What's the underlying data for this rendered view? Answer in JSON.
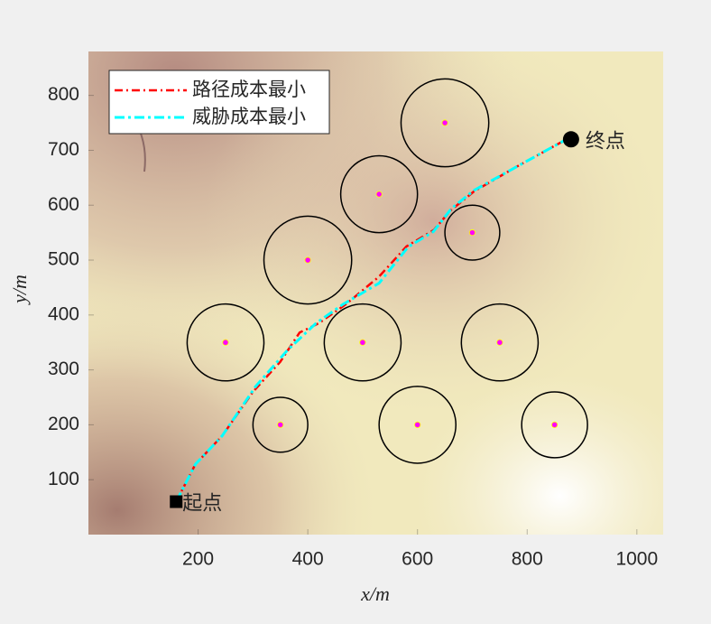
{
  "chart_data": {
    "type": "line",
    "xlabel": "x/m",
    "ylabel": "y/m",
    "xlim": [
      0,
      1048
    ],
    "ylim": [
      0,
      880
    ],
    "xticks": [
      200,
      400,
      600,
      800,
      1000
    ],
    "yticks": [
      100,
      200,
      300,
      400,
      500,
      600,
      700,
      800
    ],
    "legend": "upper left",
    "series": [
      {
        "name": "路径成本最小",
        "color": "#ff0000",
        "x": [
          160,
          195,
          244,
          300,
          350,
          385,
          420,
          470,
          530,
          580,
          630,
          660,
          703,
          777,
          879
        ],
        "y": [
          60,
          128,
          180,
          260,
          315,
          368,
          385,
          420,
          470,
          525,
          555,
          590,
          625,
          668,
          724
        ]
      },
      {
        "name": "威胁成本最小",
        "color": "#00ffff",
        "x": [
          160,
          195,
          244,
          305,
          363,
          415,
          465,
          530,
          583,
          629,
          662,
          703,
          777,
          879
        ],
        "y": [
          60,
          128,
          180,
          270,
          336,
          385,
          420,
          458,
          524,
          552,
          594,
          627,
          668,
          724
        ]
      }
    ],
    "threats": [
      {
        "x": 650,
        "y": 750,
        "r": 80
      },
      {
        "x": 530,
        "y": 620,
        "r": 70
      },
      {
        "x": 400,
        "y": 500,
        "r": 80
      },
      {
        "x": 700,
        "y": 550,
        "r": 50
      },
      {
        "x": 250,
        "y": 350,
        "r": 70
      },
      {
        "x": 500,
        "y": 350,
        "r": 70
      },
      {
        "x": 750,
        "y": 350,
        "r": 70
      },
      {
        "x": 350,
        "y": 200,
        "r": 50
      },
      {
        "x": 600,
        "y": 200,
        "r": 70
      },
      {
        "x": 850,
        "y": 200,
        "r": 60
      }
    ],
    "start": {
      "x": 160,
      "y": 60,
      "label": "起点"
    },
    "end": {
      "x": 880,
      "y": 720,
      "label": "终点"
    }
  }
}
